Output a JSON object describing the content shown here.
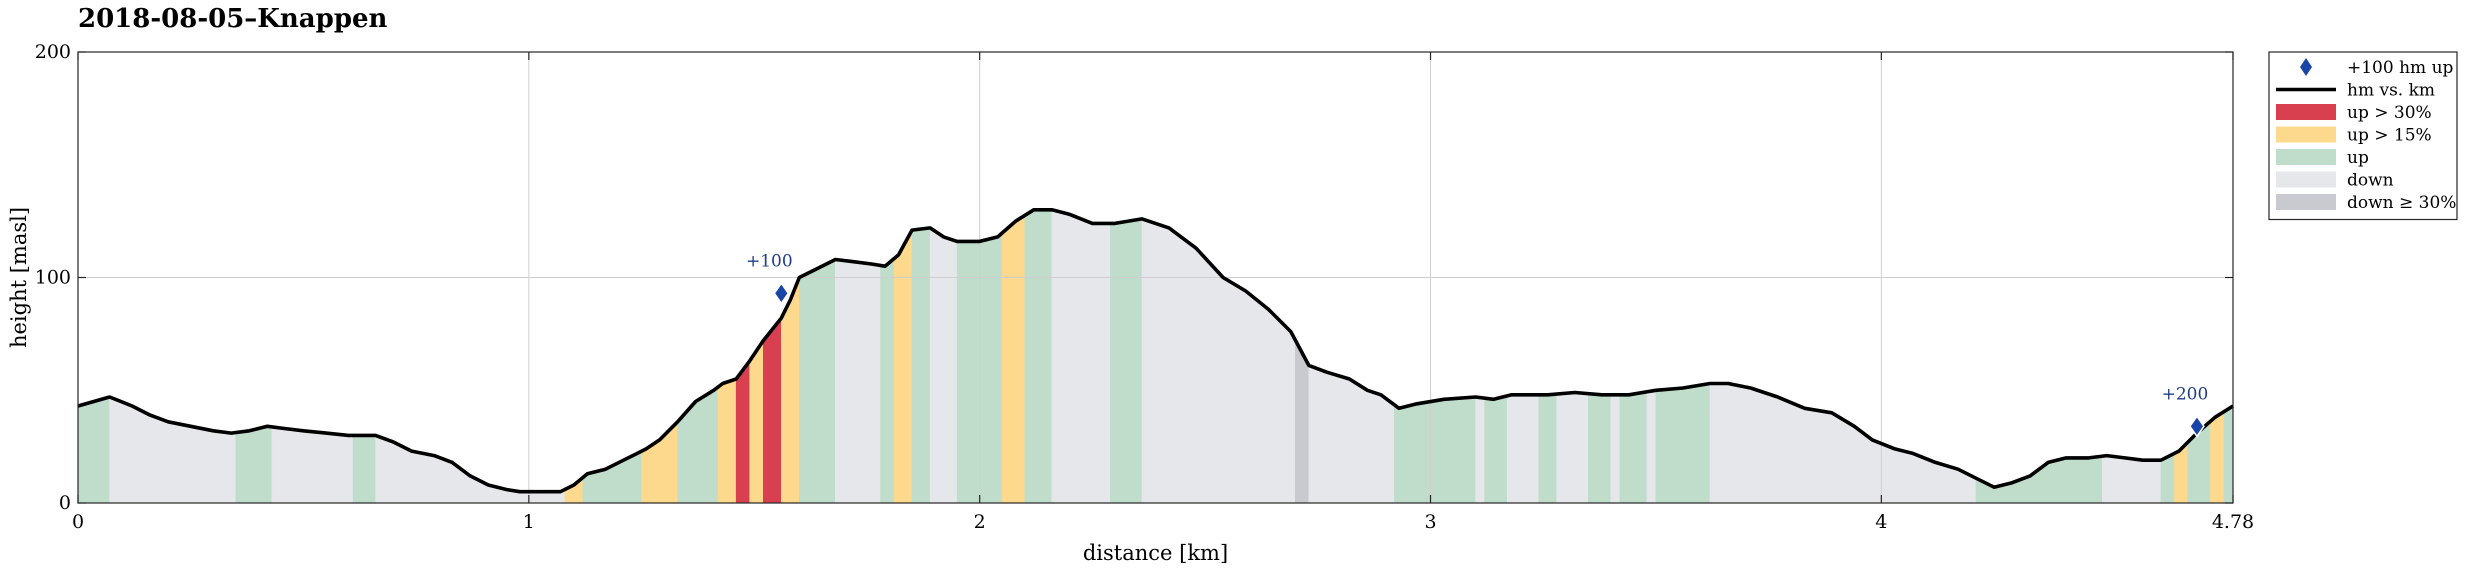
{
  "chart_data": {
    "type": "area",
    "title": "2018-08-05–Knappen",
    "xlabel": "distance [km]",
    "ylabel": "height [masl]",
    "xlim": [
      0,
      4.78
    ],
    "ylim": [
      0,
      200
    ],
    "xticks": [
      {
        "value": 0,
        "label": "0"
      },
      {
        "value": 1,
        "label": "1"
      },
      {
        "value": 2,
        "label": "2"
      },
      {
        "value": 3,
        "label": "3"
      },
      {
        "value": 4,
        "label": "4"
      },
      {
        "value": 4.78,
        "label": "4.78"
      }
    ],
    "yticks": [
      {
        "value": 0,
        "label": "0"
      },
      {
        "value": 100,
        "label": "100"
      },
      {
        "value": 200,
        "label": "200"
      }
    ],
    "grid": true,
    "legend_position": "outside-right",
    "colors": {
      "line": "#000000",
      "up30": "#d9404f",
      "up15": "#fcd98c",
      "up": "#c0dccb",
      "down": "#e6e7ea",
      "down30": "#c8cad0",
      "marker": "#1946a6"
    },
    "legend": [
      {
        "key": "marker",
        "label": "+100 hm up"
      },
      {
        "key": "line",
        "label": "hm vs. km"
      },
      {
        "key": "up30",
        "label": "up > 30%"
      },
      {
        "key": "up15",
        "label": "up > 15%"
      },
      {
        "key": "up",
        "label": "up"
      },
      {
        "key": "down",
        "label": "down"
      },
      {
        "key": "down30",
        "label": "down ≥ 30%"
      }
    ],
    "profile": [
      [
        0.0,
        43
      ],
      [
        0.07,
        47
      ],
      [
        0.12,
        43
      ],
      [
        0.16,
        39
      ],
      [
        0.2,
        36
      ],
      [
        0.25,
        34
      ],
      [
        0.3,
        32
      ],
      [
        0.34,
        31
      ],
      [
        0.38,
        32
      ],
      [
        0.42,
        34
      ],
      [
        0.46,
        33
      ],
      [
        0.5,
        32
      ],
      [
        0.55,
        31
      ],
      [
        0.6,
        30
      ],
      [
        0.66,
        30
      ],
      [
        0.7,
        27
      ],
      [
        0.74,
        23
      ],
      [
        0.79,
        21
      ],
      [
        0.83,
        18
      ],
      [
        0.87,
        12
      ],
      [
        0.91,
        8
      ],
      [
        0.95,
        6
      ],
      [
        0.98,
        5
      ],
      [
        1.02,
        5
      ],
      [
        1.07,
        5
      ],
      [
        1.1,
        8
      ],
      [
        1.13,
        13
      ],
      [
        1.17,
        15
      ],
      [
        1.21,
        19
      ],
      [
        1.26,
        24
      ],
      [
        1.29,
        28
      ],
      [
        1.33,
        36
      ],
      [
        1.37,
        45
      ],
      [
        1.41,
        50
      ],
      [
        1.43,
        53
      ],
      [
        1.46,
        55
      ],
      [
        1.49,
        63
      ],
      [
        1.52,
        72
      ],
      [
        1.56,
        82
      ],
      [
        1.58,
        90
      ],
      [
        1.6,
        100
      ],
      [
        1.64,
        104
      ],
      [
        1.68,
        108
      ],
      [
        1.72,
        107
      ],
      [
        1.76,
        106
      ],
      [
        1.79,
        105
      ],
      [
        1.82,
        110
      ],
      [
        1.85,
        121
      ],
      [
        1.89,
        122
      ],
      [
        1.92,
        118
      ],
      [
        1.95,
        116
      ],
      [
        2.0,
        116
      ],
      [
        2.04,
        118
      ],
      [
        2.08,
        125
      ],
      [
        2.12,
        130
      ],
      [
        2.16,
        130
      ],
      [
        2.2,
        128
      ],
      [
        2.25,
        124
      ],
      [
        2.3,
        124
      ],
      [
        2.36,
        126
      ],
      [
        2.42,
        122
      ],
      [
        2.48,
        113
      ],
      [
        2.54,
        100
      ],
      [
        2.59,
        94
      ],
      [
        2.64,
        86
      ],
      [
        2.69,
        76
      ],
      [
        2.73,
        61
      ],
      [
        2.77,
        58
      ],
      [
        2.82,
        55
      ],
      [
        2.86,
        50
      ],
      [
        2.89,
        48
      ],
      [
        2.93,
        42
      ],
      [
        2.97,
        44
      ],
      [
        3.03,
        46
      ],
      [
        3.1,
        47
      ],
      [
        3.14,
        46
      ],
      [
        3.18,
        48
      ],
      [
        3.26,
        48
      ],
      [
        3.32,
        49
      ],
      [
        3.38,
        48
      ],
      [
        3.44,
        48
      ],
      [
        3.5,
        50
      ],
      [
        3.56,
        51
      ],
      [
        3.62,
        53
      ],
      [
        3.66,
        53
      ],
      [
        3.71,
        51
      ],
      [
        3.77,
        47
      ],
      [
        3.83,
        42
      ],
      [
        3.89,
        40
      ],
      [
        3.94,
        34
      ],
      [
        3.98,
        28
      ],
      [
        4.03,
        24
      ],
      [
        4.07,
        22
      ],
      [
        4.12,
        18
      ],
      [
        4.17,
        15
      ],
      [
        4.21,
        11
      ],
      [
        4.25,
        7
      ],
      [
        4.29,
        9
      ],
      [
        4.33,
        12
      ],
      [
        4.37,
        18
      ],
      [
        4.41,
        20
      ],
      [
        4.46,
        20
      ],
      [
        4.5,
        21
      ],
      [
        4.54,
        20
      ],
      [
        4.58,
        19
      ],
      [
        4.62,
        19
      ],
      [
        4.66,
        23
      ],
      [
        4.7,
        31
      ],
      [
        4.74,
        38
      ],
      [
        4.78,
        43
      ]
    ],
    "bands": [
      {
        "from": 0.0,
        "to": 0.07,
        "cat": "up"
      },
      {
        "from": 0.07,
        "to": 0.35,
        "cat": "down"
      },
      {
        "from": 0.35,
        "to": 0.43,
        "cat": "up"
      },
      {
        "from": 0.43,
        "to": 0.61,
        "cat": "down"
      },
      {
        "from": 0.61,
        "to": 0.66,
        "cat": "up"
      },
      {
        "from": 0.66,
        "to": 1.08,
        "cat": "down"
      },
      {
        "from": 1.08,
        "to": 1.12,
        "cat": "up15"
      },
      {
        "from": 1.12,
        "to": 1.25,
        "cat": "up"
      },
      {
        "from": 1.25,
        "to": 1.33,
        "cat": "up15"
      },
      {
        "from": 1.33,
        "to": 1.42,
        "cat": "up"
      },
      {
        "from": 1.42,
        "to": 1.46,
        "cat": "up15"
      },
      {
        "from": 1.46,
        "to": 1.49,
        "cat": "up30"
      },
      {
        "from": 1.49,
        "to": 1.52,
        "cat": "up15"
      },
      {
        "from": 1.52,
        "to": 1.56,
        "cat": "up30"
      },
      {
        "from": 1.56,
        "to": 1.6,
        "cat": "up15"
      },
      {
        "from": 1.6,
        "to": 1.68,
        "cat": "up"
      },
      {
        "from": 1.68,
        "to": 1.78,
        "cat": "down"
      },
      {
        "from": 1.78,
        "to": 1.81,
        "cat": "up"
      },
      {
        "from": 1.81,
        "to": 1.85,
        "cat": "up15"
      },
      {
        "from": 1.85,
        "to": 1.89,
        "cat": "up"
      },
      {
        "from": 1.89,
        "to": 1.95,
        "cat": "down"
      },
      {
        "from": 1.95,
        "to": 2.05,
        "cat": "up"
      },
      {
        "from": 2.05,
        "to": 2.1,
        "cat": "up15"
      },
      {
        "from": 2.1,
        "to": 2.16,
        "cat": "up"
      },
      {
        "from": 2.16,
        "to": 2.29,
        "cat": "down"
      },
      {
        "from": 2.29,
        "to": 2.36,
        "cat": "up"
      },
      {
        "from": 2.36,
        "to": 2.7,
        "cat": "down"
      },
      {
        "from": 2.7,
        "to": 2.73,
        "cat": "down30"
      },
      {
        "from": 2.73,
        "to": 2.92,
        "cat": "down"
      },
      {
        "from": 2.92,
        "to": 3.1,
        "cat": "up"
      },
      {
        "from": 3.1,
        "to": 3.12,
        "cat": "down"
      },
      {
        "from": 3.12,
        "to": 3.17,
        "cat": "up"
      },
      {
        "from": 3.17,
        "to": 3.24,
        "cat": "down"
      },
      {
        "from": 3.24,
        "to": 3.28,
        "cat": "up"
      },
      {
        "from": 3.28,
        "to": 3.35,
        "cat": "down"
      },
      {
        "from": 3.35,
        "to": 3.4,
        "cat": "up"
      },
      {
        "from": 3.4,
        "to": 3.42,
        "cat": "down"
      },
      {
        "from": 3.42,
        "to": 3.48,
        "cat": "up"
      },
      {
        "from": 3.48,
        "to": 3.5,
        "cat": "down"
      },
      {
        "from": 3.5,
        "to": 3.62,
        "cat": "up"
      },
      {
        "from": 3.62,
        "to": 4.21,
        "cat": "down"
      },
      {
        "from": 4.21,
        "to": 4.49,
        "cat": "up"
      },
      {
        "from": 4.49,
        "to": 4.62,
        "cat": "down"
      },
      {
        "from": 4.62,
        "to": 4.65,
        "cat": "up"
      },
      {
        "from": 4.65,
        "to": 4.68,
        "cat": "up15"
      },
      {
        "from": 4.68,
        "to": 4.73,
        "cat": "up"
      },
      {
        "from": 4.73,
        "to": 4.76,
        "cat": "up15"
      },
      {
        "from": 4.76,
        "to": 4.78,
        "cat": "up"
      }
    ],
    "markers": [
      {
        "x": 1.56,
        "y": 93,
        "label": "+100"
      },
      {
        "x": 4.7,
        "y": 34,
        "label": "+200"
      }
    ]
  }
}
